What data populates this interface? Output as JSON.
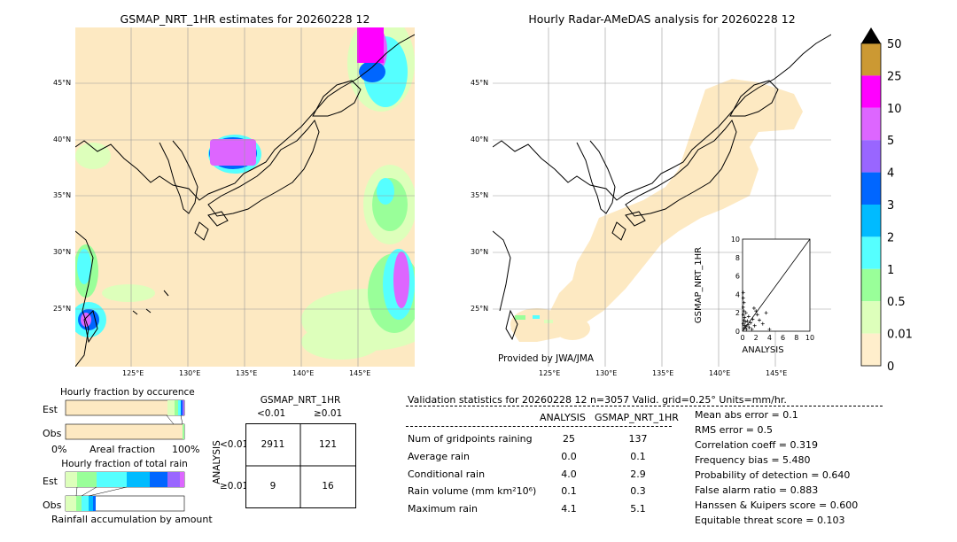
{
  "left_map": {
    "title": "GSMAP_NRT_1HR estimates for 20260228 12",
    "lat_labels": [
      "45°N",
      "40°N",
      "35°N",
      "30°N",
      "25°N"
    ],
    "lon_labels": [
      "125°E",
      "130°E",
      "135°E",
      "140°E",
      "145°E"
    ]
  },
  "right_map": {
    "title": "Hourly Radar-AMeDAS analysis for 20260228 12",
    "lat_labels": [
      "45°N",
      "40°N",
      "35°N",
      "30°N",
      "25°N"
    ],
    "lon_labels": [
      "125°E",
      "130°E",
      "135°E",
      "140°E",
      "145°E"
    ],
    "credit": "Provided by JWA/JMA"
  },
  "colorbar": {
    "labels": [
      "50",
      "25",
      "10",
      "5",
      "4",
      "3",
      "2",
      "1",
      "0.5",
      "0.01",
      "0"
    ],
    "colors": [
      "#cc9933",
      "#ff00ff",
      "#dd66ff",
      "#9966ff",
      "#0066ff",
      "#00bbff",
      "#55ffff",
      "#99ff99",
      "#ddffbb",
      "#ffeecc"
    ]
  },
  "occurrence": {
    "title": "Hourly fraction by occurence",
    "row_est": "Est",
    "row_obs": "Obs",
    "axis_left": "0%",
    "axis_mid": "Areal fraction",
    "axis_right": "100%"
  },
  "total_rain": {
    "title": "Hourly fraction of total rain",
    "row_est": "Est",
    "row_obs": "Obs",
    "footer": "Rainfall accumulation by amount"
  },
  "contingency": {
    "title": "GSMAP_NRT_1HR",
    "col1": "<0.01",
    "col2": "≥0.01",
    "row_axis": "ANALYSIS",
    "row1": "<0.01",
    "row2": "≥0.01",
    "c11": "2911",
    "c12": "121",
    "c21": "9",
    "c22": "16"
  },
  "validation": {
    "header": "Validation statistics for 20260228 12  n=3057 Valid. grid=0.25° Units=mm/hr.",
    "col_analysis": "ANALYSIS",
    "col_gsmap": "GSMAP_NRT_1HR",
    "rows": [
      {
        "label": "Num of gridpoints raining",
        "a": "25",
        "g": "137"
      },
      {
        "label": "Average rain",
        "a": "0.0",
        "g": "0.1"
      },
      {
        "label": "Conditional rain",
        "a": "4.0",
        "g": "2.9"
      },
      {
        "label": "Rain volume (mm km²10⁶)",
        "a": "0.1",
        "g": "0.3"
      },
      {
        "label": "Maximum rain",
        "a": "4.1",
        "g": "5.1"
      }
    ],
    "scores": [
      "Mean abs error =    0.1",
      "RMS error =    0.5",
      "Correlation coeff =  0.319",
      "Frequency bias =  5.480",
      "Probability of detection =  0.640",
      "False alarm ratio =  0.883",
      "Hanssen & Kuipers score =  0.600",
      "Equitable threat score =  0.103"
    ]
  },
  "chart_data": {
    "type": "scatter",
    "xlabel": "ANALYSIS",
    "ylabel": "GSMAP_NRT_1HR",
    "xlim": [
      0,
      10
    ],
    "ylim": [
      0,
      10
    ],
    "x_ticks": [
      "0",
      "2",
      "4",
      "6",
      "8",
      "10"
    ],
    "y_ticks": [
      "0",
      "2",
      "4",
      "6",
      "8",
      "10"
    ],
    "points": [
      {
        "x": 0.1,
        "y": 4.2
      },
      {
        "x": 0.1,
        "y": 3.6
      },
      {
        "x": 0.2,
        "y": 3.1
      },
      {
        "x": 0.1,
        "y": 2.6
      },
      {
        "x": 0.2,
        "y": 2.2
      },
      {
        "x": 0.1,
        "y": 1.8
      },
      {
        "x": 0.3,
        "y": 1.5
      },
      {
        "x": 0.2,
        "y": 1.2
      },
      {
        "x": 0.4,
        "y": 1.0
      },
      {
        "x": 0.1,
        "y": 0.8
      },
      {
        "x": 0.3,
        "y": 0.6
      },
      {
        "x": 0.5,
        "y": 0.5
      },
      {
        "x": 0.2,
        "y": 0.3
      },
      {
        "x": 0.6,
        "y": 0.2
      },
      {
        "x": 0.8,
        "y": 0.7
      },
      {
        "x": 1.0,
        "y": 0.4
      },
      {
        "x": 1.2,
        "y": 0.9
      },
      {
        "x": 1.5,
        "y": 1.3
      },
      {
        "x": 1.7,
        "y": 2.5
      },
      {
        "x": 2.0,
        "y": 2.2
      },
      {
        "x": 2.2,
        "y": 1.8
      },
      {
        "x": 2.5,
        "y": 1.2
      },
      {
        "x": 3.0,
        "y": 0.8
      },
      {
        "x": 3.5,
        "y": 2.0
      },
      {
        "x": 4.0,
        "y": 0.2
      },
      {
        "x": 1.4,
        "y": 0.2
      },
      {
        "x": 0.9,
        "y": 1.6
      },
      {
        "x": 0.5,
        "y": 2.0
      },
      {
        "x": 1.8,
        "y": 0.6
      },
      {
        "x": 0.7,
        "y": 1.1
      }
    ]
  }
}
